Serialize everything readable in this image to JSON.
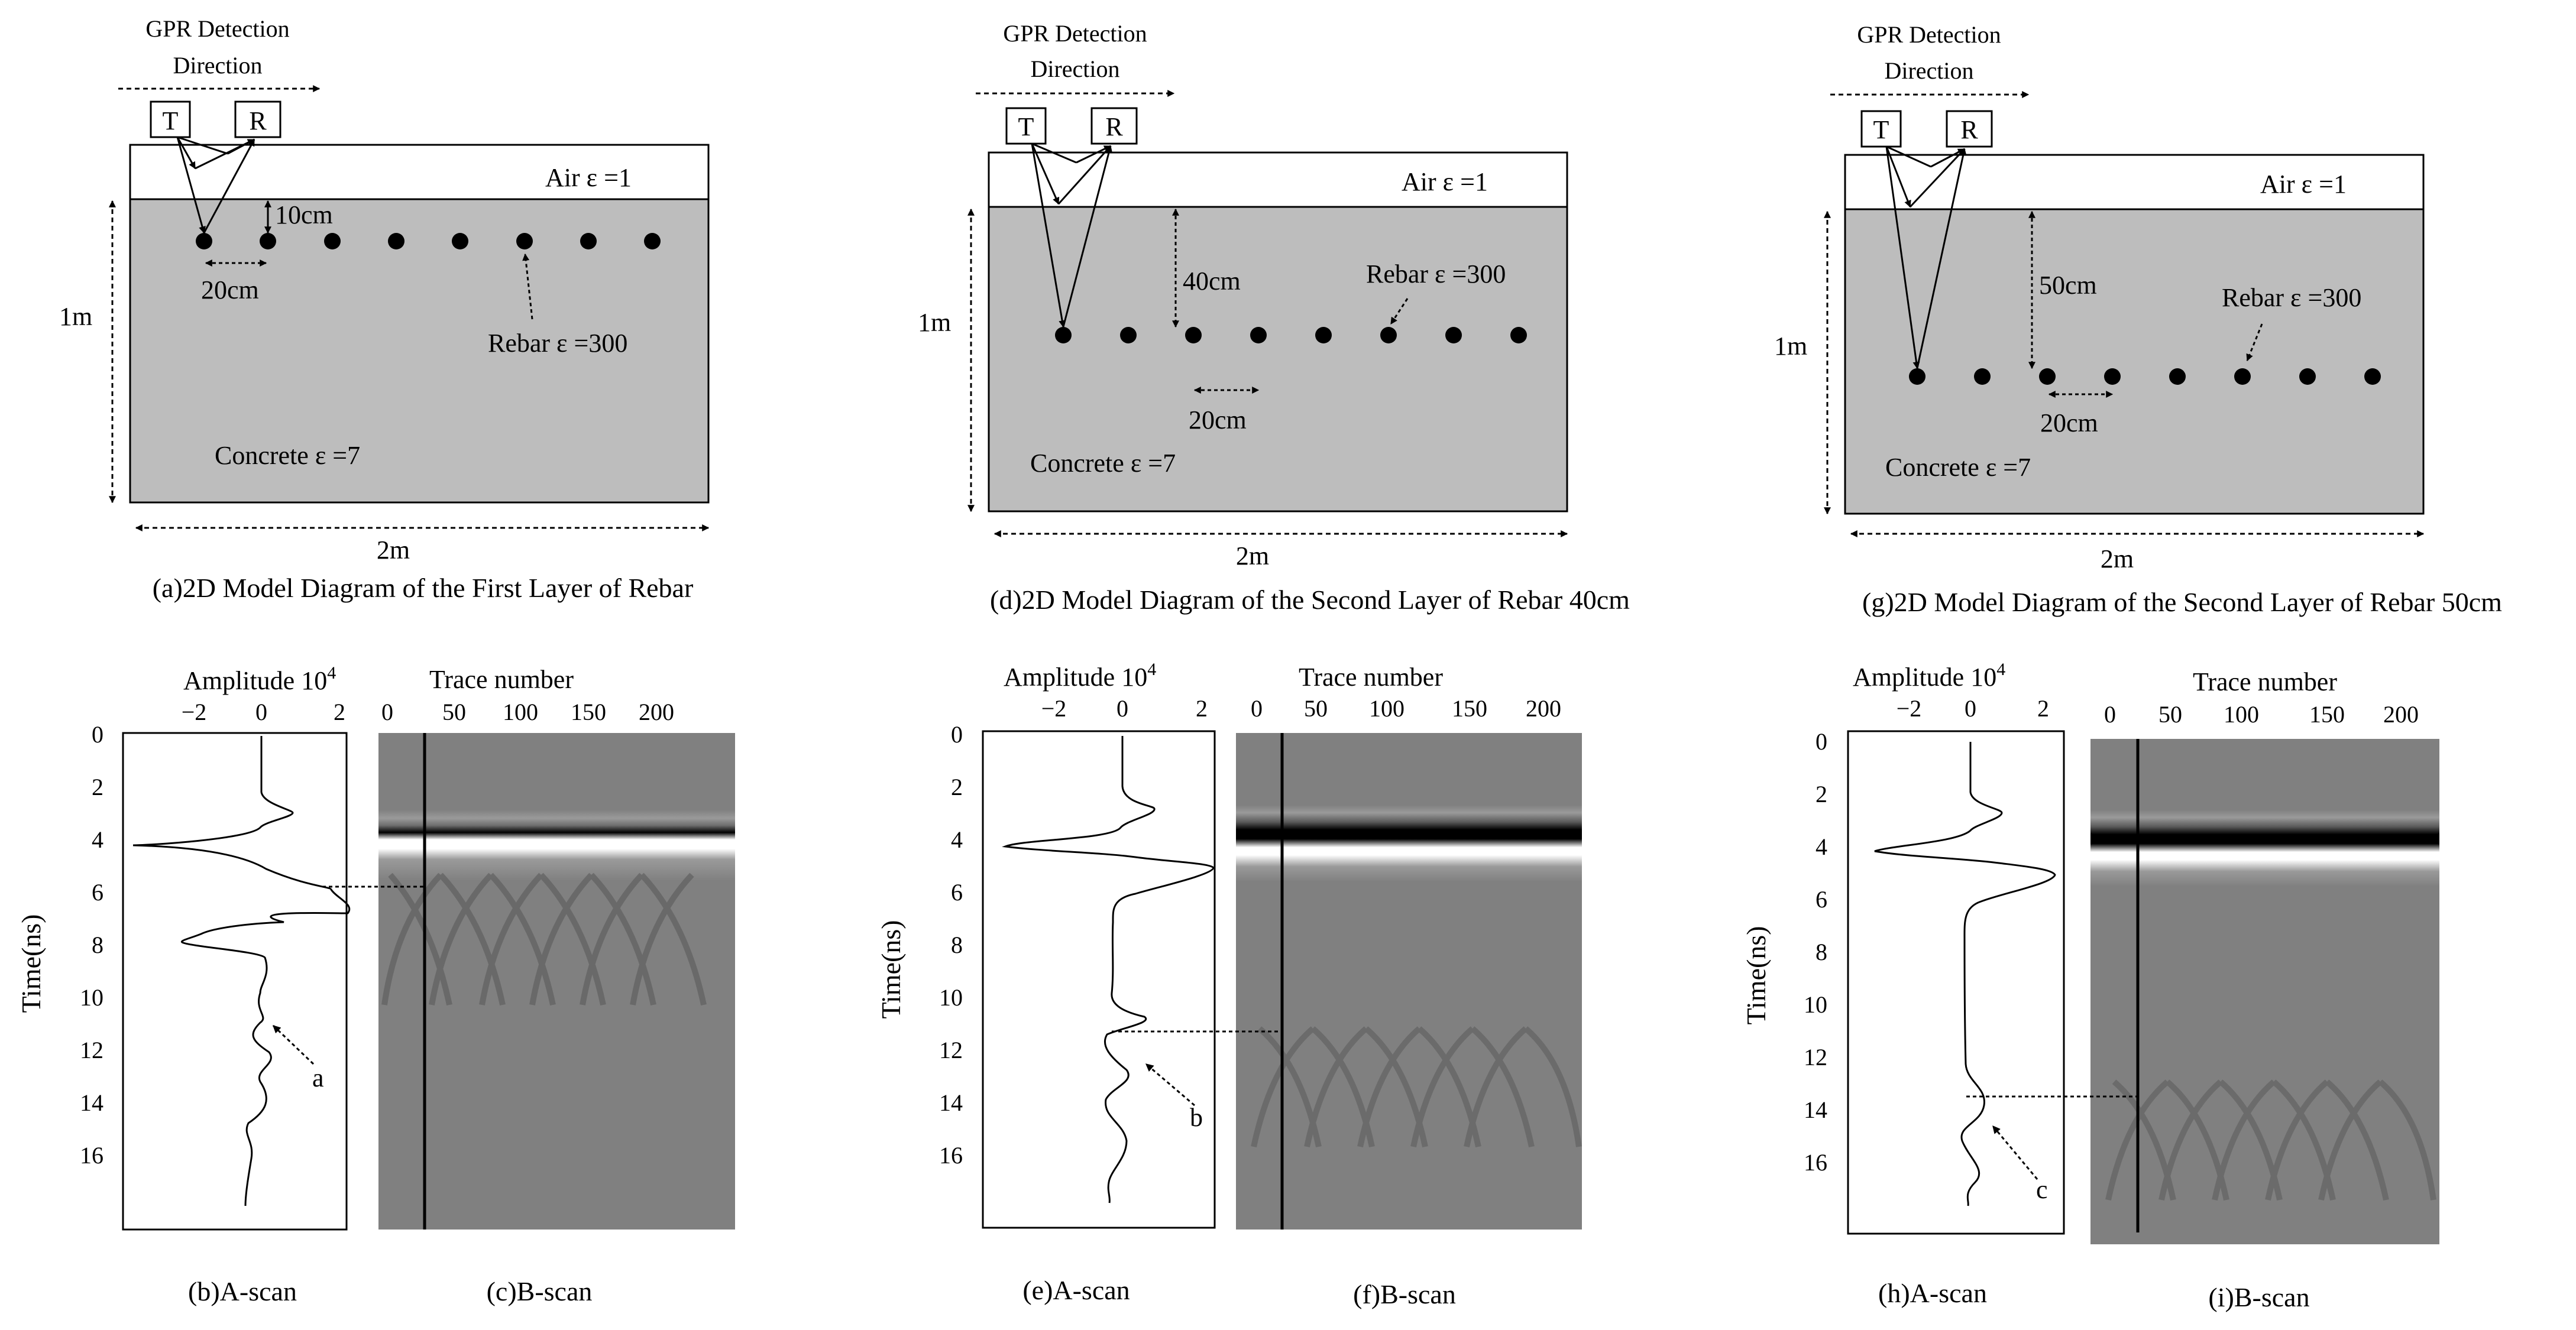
{
  "colors": {
    "concrete": "#bdbdbd",
    "air": "#ffffff",
    "rebar": "#000000",
    "bscan_bg": "#808080"
  },
  "model_labels": {
    "gpr_line1": "GPR Detection",
    "gpr_line2": "Direction",
    "transmitter": "T",
    "receiver": "R",
    "air": "Air ε =1",
    "concrete": "Concrete ε =7",
    "rebar": "Rebar ε =300",
    "height": "1m",
    "width": "2m",
    "spacing": "20cm"
  },
  "panels": [
    {
      "depth_label": "10cm",
      "model_caption": "(a)2D Model Diagram of the First Layer of Rebar",
      "ascan_caption": "(b)A-scan",
      "bscan_caption": "(c)B-scan",
      "marker": "a"
    },
    {
      "depth_label": "40cm",
      "model_caption": "(d)2D Model Diagram of the Second Layer of Rebar 40cm",
      "ascan_caption": "(e)A-scan",
      "bscan_caption": "(f)B-scan",
      "marker": "b"
    },
    {
      "depth_label": "50cm",
      "model_caption": "(g)2D Model Diagram of the Second Layer of Rebar 50cm",
      "ascan_caption": "(h)A-scan",
      "bscan_caption": "(i)B-scan",
      "marker": "c"
    }
  ],
  "plot_labels": {
    "amplitude": "Amplitude 10",
    "amplitude_exp": "4",
    "trace": "Trace number",
    "time": "Time(ns)",
    "amp_ticks": [
      "−2",
      "0",
      "2"
    ],
    "trace_ticks": [
      "0",
      "50",
      "100",
      "150",
      "200"
    ],
    "time_ticks": [
      "0",
      "2",
      "4",
      "6",
      "8",
      "10",
      "12",
      "14",
      "16"
    ]
  }
}
